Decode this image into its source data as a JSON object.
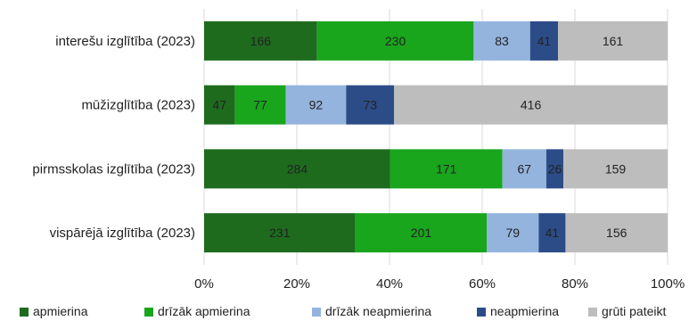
{
  "chart_data": {
    "type": "bar",
    "orientation": "horizontal",
    "stacked": "percent",
    "title": "",
    "xlabel": "",
    "ylabel": "",
    "categories": [
      "interešu izglītība (2023)",
      "mūžizglītība (2023)",
      "pirmsskolas izglītība (2023)",
      "vispārējā izglītība (2023)"
    ],
    "series": [
      {
        "name": "apmierina",
        "values": [
          166,
          47,
          284,
          231
        ],
        "color": "#1E6B1E"
      },
      {
        "name": "drīzāk apmierina",
        "values": [
          230,
          77,
          171,
          201
        ],
        "color": "#19A61D"
      },
      {
        "name": "drīzāk neapmierina",
        "values": [
          83,
          92,
          67,
          79
        ],
        "color": "#94B4DE"
      },
      {
        "name": "neapmierina",
        "values": [
          41,
          73,
          26,
          41
        ],
        "color": "#2C4C87"
      },
      {
        "name": "grūti pateikt",
        "values": [
          161,
          416,
          159,
          156
        ],
        "color": "#BDBDBD"
      }
    ],
    "xlim": [
      0,
      100
    ],
    "x_ticks": [
      "0%",
      "20%",
      "40%",
      "60%",
      "80%",
      "100%"
    ],
    "grid": "vertical",
    "legend_position": "bottom"
  }
}
